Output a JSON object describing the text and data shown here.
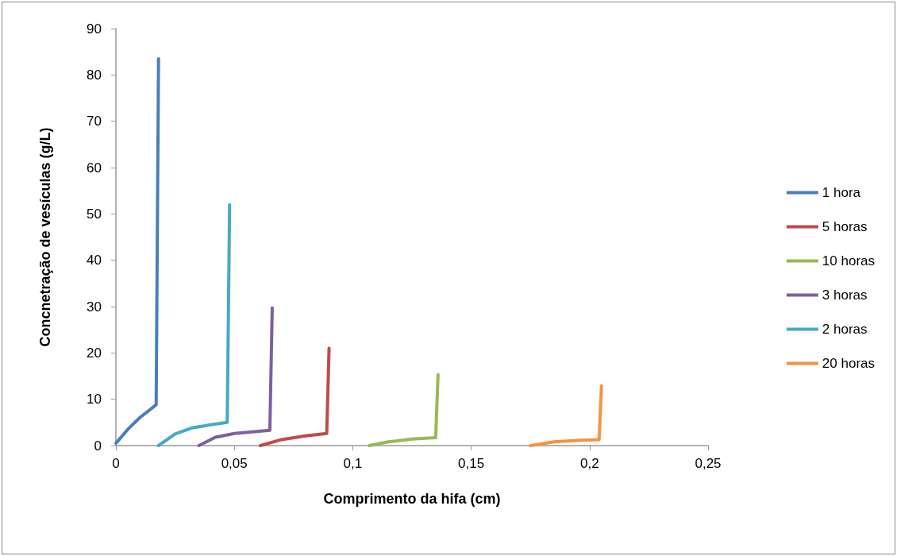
{
  "chart_data": {
    "type": "line",
    "xlabel": "Comprimento da hifa (cm)",
    "ylabel": "Concnetração de vesículas (g/L)",
    "xlim": [
      0,
      0.25
    ],
    "xticks": [
      {
        "value": 0,
        "label": "0"
      },
      {
        "value": 0.05,
        "label": "0,05"
      },
      {
        "value": 0.1,
        "label": "0,1"
      },
      {
        "value": 0.15,
        "label": "0,15"
      },
      {
        "value": 0.2,
        "label": "0,2"
      },
      {
        "value": 0.25,
        "label": "0,25"
      }
    ],
    "ylim": [
      0,
      90
    ],
    "yticks": [
      0,
      10,
      20,
      30,
      40,
      50,
      60,
      70,
      80,
      90
    ],
    "grid": false,
    "legend": "right",
    "marker": "none",
    "line_style": "solid",
    "series": [
      {
        "name": "1 hora",
        "color": "#4a7ebb",
        "x": [
          0,
          0.005,
          0.01,
          0.017,
          0.018
        ],
        "values": [
          0.5,
          3.5,
          6,
          8.8,
          83.5
        ]
      },
      {
        "name": "5 horas",
        "color": "#be4b48",
        "x": [
          0.061,
          0.07,
          0.08,
          0.089,
          0.09
        ],
        "values": [
          0,
          1.3,
          2.1,
          2.6,
          21
        ]
      },
      {
        "name": "10 horas",
        "color": "#98b954",
        "x": [
          0.107,
          0.115,
          0.125,
          0.135,
          0.136
        ],
        "values": [
          0,
          0.8,
          1.4,
          1.7,
          15.3
        ]
      },
      {
        "name": "3 horas",
        "color": "#7d60a0",
        "x": [
          0.035,
          0.042,
          0.05,
          0.065,
          0.066
        ],
        "values": [
          0,
          1.8,
          2.6,
          3.3,
          29.7
        ]
      },
      {
        "name": "2 horas",
        "color": "#46aac5",
        "x": [
          0.018,
          0.025,
          0.032,
          0.04,
          0.047,
          0.048
        ],
        "values": [
          0,
          2.5,
          3.8,
          4.5,
          5,
          52
        ]
      },
      {
        "name": "20 horas",
        "color": "#f69240",
        "x": [
          0.175,
          0.185,
          0.195,
          0.204,
          0.205
        ],
        "values": [
          0,
          0.8,
          1.1,
          1.3,
          12.9
        ]
      }
    ]
  }
}
